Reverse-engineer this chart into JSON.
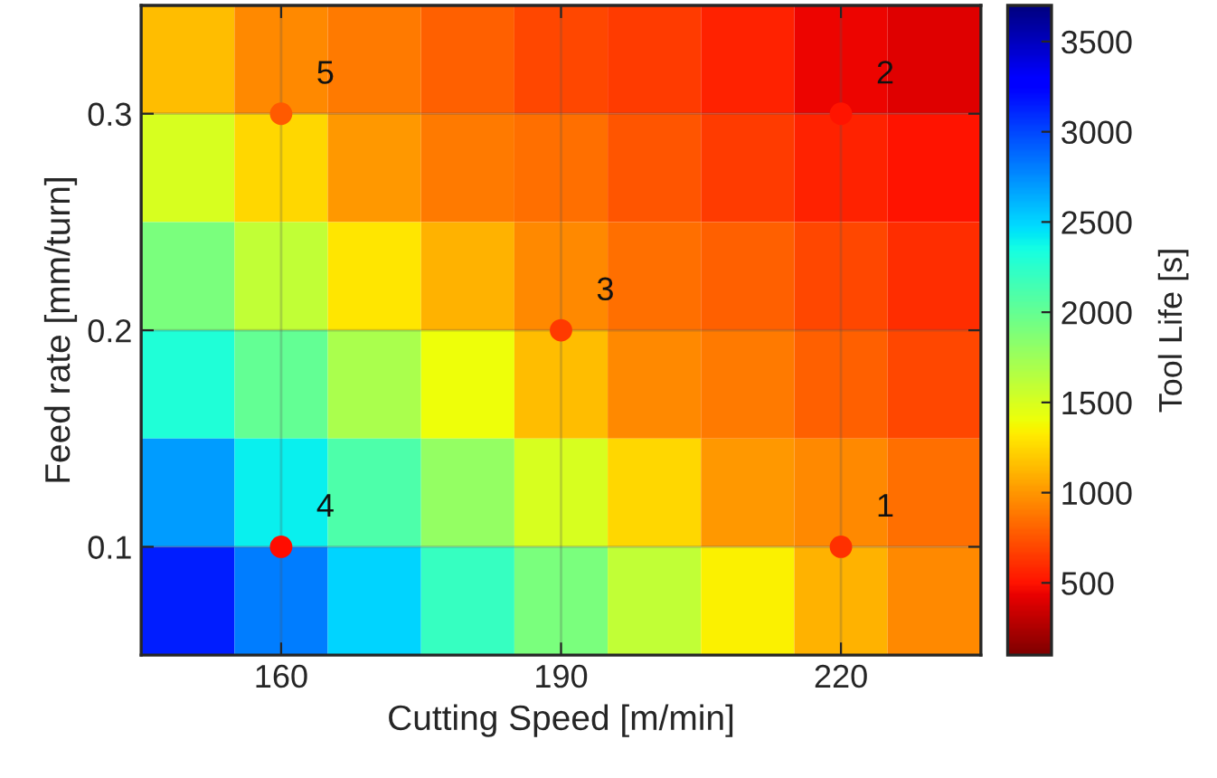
{
  "chart_data": {
    "type": "heatmap",
    "xlabel": "Cutting Speed [m/min]",
    "ylabel": "Feed rate [mm/turn]",
    "clabel": "Tool Life [s]",
    "xlim": [
      145,
      235
    ],
    "ylim": [
      0.05,
      0.35
    ],
    "xticks": [
      160,
      190,
      220
    ],
    "yticks": [
      0.1,
      0.2,
      0.3
    ],
    "clim": [
      100,
      3700
    ],
    "cticks": [
      500,
      1000,
      1500,
      2000,
      2500,
      3000,
      3500
    ],
    "grid": true,
    "cells": [
      [
        1150,
        950,
        900,
        800,
        700,
        650,
        550,
        450,
        400
      ],
      [
        1500,
        1250,
        1000,
        900,
        850,
        750,
        650,
        550,
        500
      ],
      [
        1900,
        1600,
        1300,
        1100,
        950,
        850,
        800,
        700,
        600
      ],
      [
        2300,
        2000,
        1700,
        1400,
        1150,
        950,
        900,
        800,
        700
      ],
      [
        2700,
        2400,
        2100,
        1800,
        1500,
        1250,
        1000,
        950,
        850
      ],
      [
        3150,
        2800,
        2500,
        2200,
        1900,
        1600,
        1350,
        1100,
        950
      ]
    ],
    "series": [
      {
        "type": "scatter",
        "marker": "circle",
        "x": [
          220,
          220,
          190,
          160,
          160
        ],
        "values": [
          0.1,
          0.3,
          0.2,
          0.1,
          0.3
        ],
        "colors": [
          "#ff3000",
          "#ff1400",
          "#ff3a00",
          "#ff0c00",
          "#ff5a00"
        ]
      }
    ],
    "annotations": [
      {
        "text": "1",
        "x": 220,
        "y": 0.1
      },
      {
        "text": "2",
        "x": 220,
        "y": 0.3
      },
      {
        "text": "3",
        "x": 190,
        "y": 0.2
      },
      {
        "text": "4",
        "x": 160,
        "y": 0.1
      },
      {
        "text": "5",
        "x": 160,
        "y": 0.3
      }
    ]
  }
}
